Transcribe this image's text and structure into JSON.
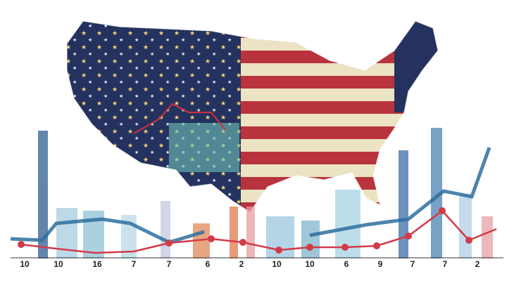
{
  "axis_labels": [
    10,
    10,
    16,
    7,
    7,
    6,
    2,
    10,
    10,
    6,
    9,
    7,
    7,
    2
  ]
}
